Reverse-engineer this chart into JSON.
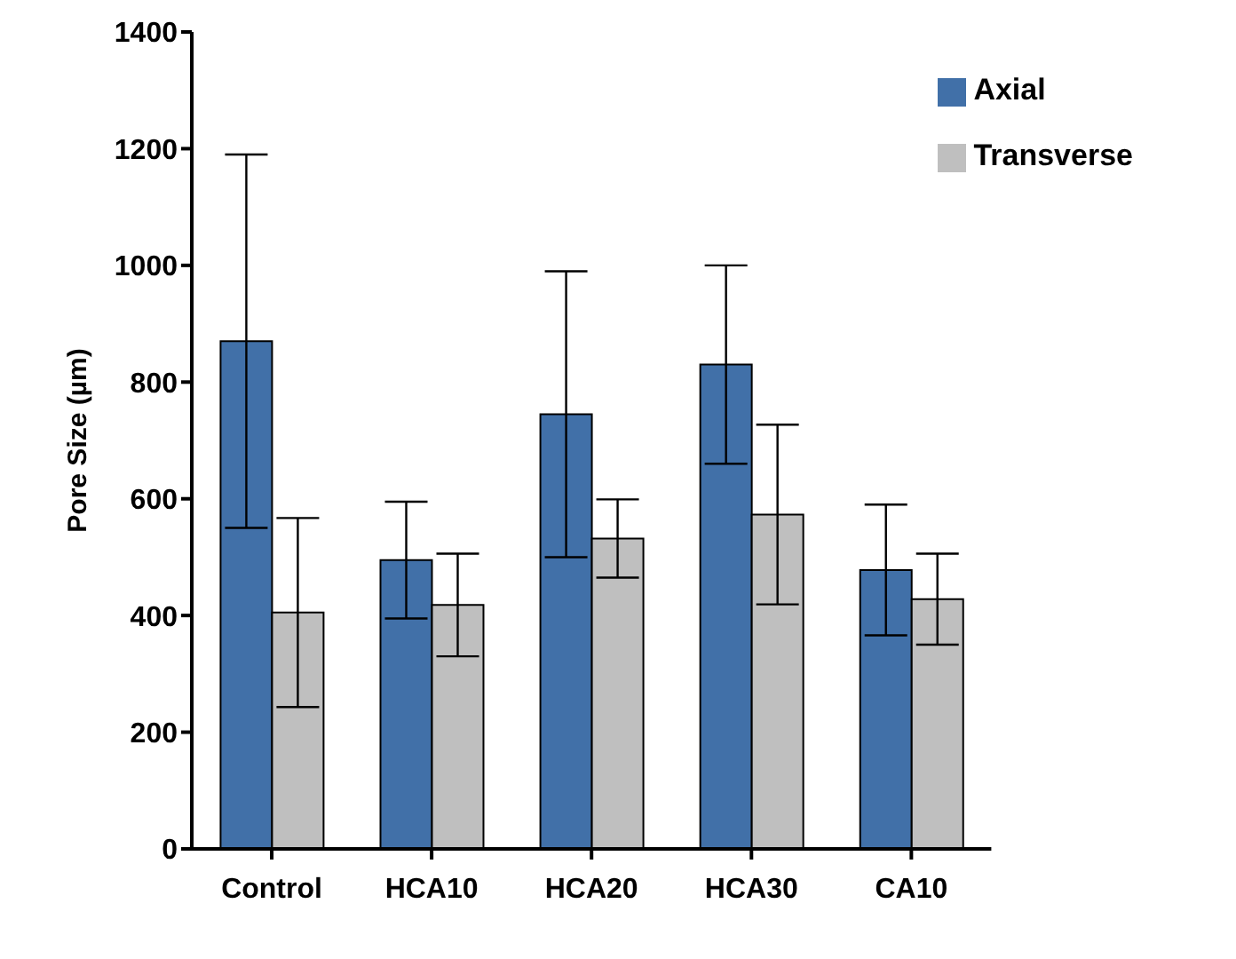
{
  "chart_data": {
    "type": "bar",
    "ylabel": "Pore Size (µm)",
    "categories": [
      "Control",
      "HCA10",
      "HCA20",
      "HCA30",
      "CA10"
    ],
    "series": [
      {
        "name": "Axial",
        "color": "#4170a8",
        "values": [
          870,
          495,
          745,
          830,
          478
        ],
        "errors": [
          320,
          100,
          245,
          170,
          112
        ]
      },
      {
        "name": "Transverse",
        "color": "#bfbfbf",
        "values": [
          405,
          418,
          532,
          573,
          428
        ],
        "errors": [
          162,
          88,
          67,
          154,
          78
        ]
      }
    ],
    "ylim": [
      0,
      1400
    ],
    "yticks": [
      0,
      200,
      400,
      600,
      800,
      1000,
      1200,
      1400
    ],
    "grid": false,
    "legend": "top right"
  }
}
